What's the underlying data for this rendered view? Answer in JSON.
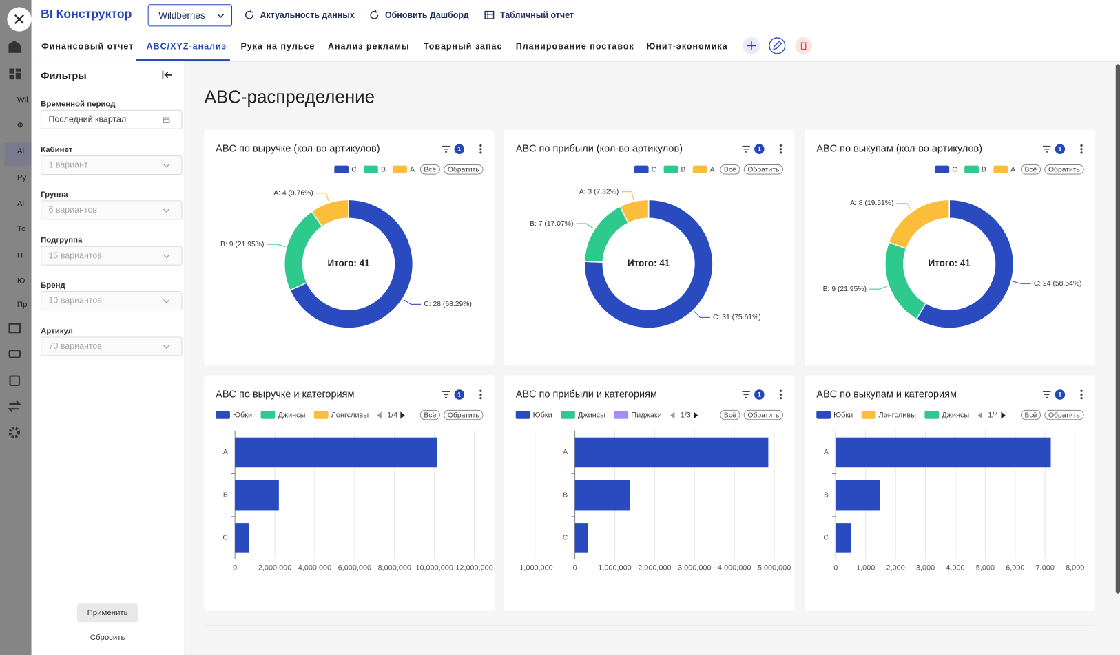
{
  "header": {
    "logo": "BI Конструктор",
    "source": "Wildberries",
    "actions": [
      "Актуальность данных",
      "Обновить Дашборд",
      "Табличный отчет"
    ]
  },
  "sidebar_fragments": [
    "Wil",
    "Ф",
    "Al",
    "Ру",
    "Ai",
    "То",
    "П",
    "Ю",
    "Пр"
  ],
  "tabs": [
    "Финансовый отчет",
    "ABC/XYZ-анализ",
    "Рука на пульсе",
    "Анализ рекламы",
    "Товарный запас",
    "Планирование поставок",
    "Юнит-экономика"
  ],
  "filters": {
    "title": "Фильтры",
    "fields": [
      {
        "label": "Временной период",
        "value": "Последний квартал"
      },
      {
        "label": "Кабинет",
        "value": "1 вариант"
      },
      {
        "label": "Группа",
        "value": "6 вариантов"
      },
      {
        "label": "Подгруппа",
        "value": "15 вариантов"
      },
      {
        "label": "Бренд",
        "value": "10 вариантов"
      },
      {
        "label": "Артикул",
        "value": "70 вариантов"
      }
    ],
    "apply": "Применить",
    "reset": "Сбросить"
  },
  "page_title": "ABC-распределение",
  "chart_data": [
    {
      "type": "donut",
      "title": "ABC по выручке (кол-во артикулов)",
      "filter_count": 1,
      "controls": [
        "Всё",
        "Обратить"
      ],
      "categories": [
        "C",
        "B",
        "A"
      ],
      "values": [
        28,
        9,
        4
      ],
      "value_labels": [
        "C: 28 (68.29%)",
        "B: 9 (21.95%)",
        "A: 4 (9.76%)"
      ],
      "colors": [
        "#2a4bbf",
        "#2ec98c",
        "#fbbd3a"
      ],
      "center_label": "Итого: 41"
    },
    {
      "type": "donut",
      "title": "ABC по прибыли (кол-во артикулов)",
      "filter_count": 1,
      "controls": [
        "Всё",
        "Обратить"
      ],
      "categories": [
        "C",
        "B",
        "A"
      ],
      "values": [
        31,
        7,
        3
      ],
      "value_labels": [
        "C: 31 (75.61%)",
        "B: 7 (17.07%)",
        "A: 3 (7.32%)"
      ],
      "colors": [
        "#2a4bbf",
        "#2ec98c",
        "#fbbd3a"
      ],
      "center_label": "Итого: 41"
    },
    {
      "type": "donut",
      "title": "ABC по выкупам (кол-во артикулов)",
      "filter_count": 1,
      "controls": [
        "Всё",
        "Обратить"
      ],
      "categories": [
        "C",
        "B",
        "A"
      ],
      "values": [
        24,
        9,
        8
      ],
      "value_labels": [
        "C: 24 (58.54%)",
        "B: 9 (21.95%)",
        "A: 8 (19.51%)"
      ],
      "colors": [
        "#2a4bbf",
        "#2ec98c",
        "#fbbd3a"
      ],
      "center_label": "Итого: 41"
    },
    {
      "type": "bar",
      "orientation": "horizontal",
      "title": "ABC по выручке и категориям",
      "filter_count": 1,
      "controls": [
        "Всё",
        "Обратить"
      ],
      "legend_page": "1/4",
      "categories": [
        "A",
        "B",
        "C"
      ],
      "series": [
        {
          "name": "Юбки",
          "color": "#2a4bbf",
          "values": [
            10150000,
            2200000,
            700000
          ]
        },
        {
          "name": "Джинсы",
          "color": "#2ec98c",
          "values": [
            null,
            null,
            null
          ]
        },
        {
          "name": "Лонгсливы",
          "color": "#fbbd3a",
          "values": [
            null,
            null,
            null
          ]
        }
      ],
      "xlim": [
        0,
        12000000
      ],
      "xticks": [
        0,
        {
          "value": 2000000,
          "label": "2,000,000"
        },
        {
          "value": 4000000,
          "label": "4,000,000"
        },
        {
          "value": 6000000,
          "label": "6,000,000"
        },
        {
          "value": 8000000,
          "label": "8,000,000"
        },
        {
          "value": 10000000,
          "label": "10,000,000"
        },
        {
          "value": 12000000,
          "label": "12,000,000"
        }
      ],
      "grid": true
    },
    {
      "type": "bar",
      "orientation": "horizontal",
      "title": "ABC по прибыли и категориям",
      "filter_count": 1,
      "controls": [
        "Всё",
        "Обратить"
      ],
      "legend_page": "1/3",
      "categories": [
        "A",
        "B",
        "C"
      ],
      "series": [
        {
          "name": "Юбки",
          "color": "#2a4bbf",
          "values": [
            4850000,
            1380000,
            330000
          ]
        },
        {
          "name": "Джинсы",
          "color": "#2ec98c",
          "values": [
            null,
            null,
            null
          ]
        },
        {
          "name": "Пиджаки",
          "color": "#a78bfa",
          "values": [
            null,
            null,
            null
          ]
        }
      ],
      "xlim": [
        -1000000,
        5000000
      ],
      "xticks": [
        {
          "value": -1000000,
          "label": "-1,000,000"
        },
        0,
        {
          "value": 1000000,
          "label": "1,000,000"
        },
        {
          "value": 2000000,
          "label": "2,000,000"
        },
        {
          "value": 3000000,
          "label": "3,000,000"
        },
        {
          "value": 4000000,
          "label": "4,000,000"
        },
        {
          "value": 5000000,
          "label": "5,000,000"
        }
      ],
      "grid": true
    },
    {
      "type": "bar",
      "orientation": "horizontal",
      "title": "ABC по выкупам и категориям",
      "filter_count": 1,
      "controls": [
        "Всё",
        "Обратить"
      ],
      "legend_page": "1/4",
      "categories": [
        "A",
        "B",
        "C"
      ],
      "series": [
        {
          "name": "Юбки",
          "color": "#2a4bbf",
          "values": [
            7190,
            1480,
            500
          ]
        },
        {
          "name": "Лонгсливы",
          "color": "#fbbd3a",
          "values": [
            null,
            null,
            null
          ]
        },
        {
          "name": "Джинсы",
          "color": "#2ec98c",
          "values": [
            null,
            null,
            null
          ]
        }
      ],
      "xlim": [
        0,
        8000
      ],
      "xticks": [
        0,
        {
          "value": 1000,
          "label": "1,000"
        },
        {
          "value": 2000,
          "label": "2,000"
        },
        {
          "value": 3000,
          "label": "3,000"
        },
        {
          "value": 4000,
          "label": "4,000"
        },
        {
          "value": 5000,
          "label": "5,000"
        },
        {
          "value": 6000,
          "label": "6,000"
        },
        {
          "value": 7000,
          "label": "7,000"
        },
        {
          "value": 8000,
          "label": "8,000"
        }
      ],
      "grid": true
    }
  ]
}
